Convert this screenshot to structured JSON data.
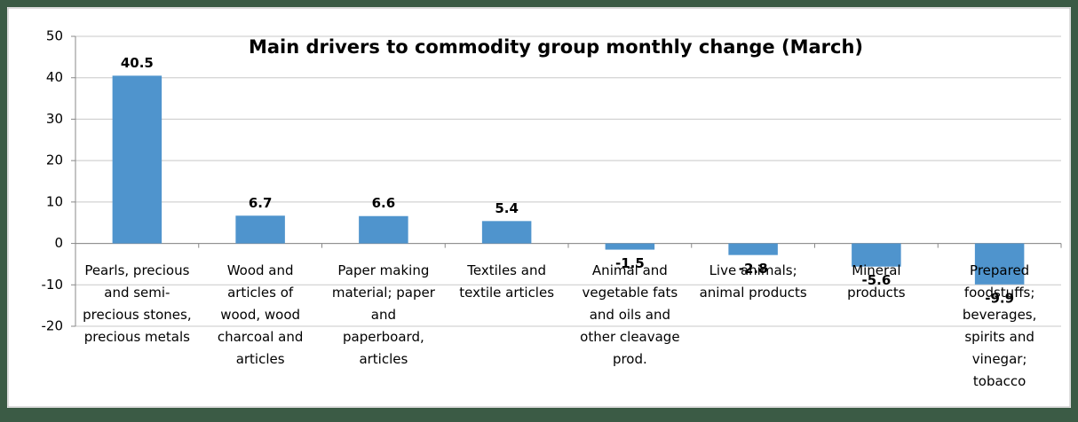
{
  "chart_data": {
    "type": "bar",
    "title": "Main drivers to commodity group monthly change (March)",
    "categories": [
      "Pearls, precious and semi-precious stones, precious metals",
      "Wood and articles of wood, wood charcoal and articles",
      "Paper making material; paper and paperboard, articles",
      "Textiles and textile articles",
      "Animal and vegetable fats and oils and other cleavage prod.",
      "Live animals; animal products",
      "Mineral products",
      "Prepared foodstuffs; beverages, spirits and vinegar; tobacco"
    ],
    "values": [
      40.5,
      6.7,
      6.6,
      5.4,
      -1.5,
      -2.8,
      -5.6,
      -9.9
    ],
    "color": "#4f94cd",
    "ylim": [
      -20,
      50
    ],
    "yticks": [
      -20,
      -10,
      0,
      10,
      20,
      30,
      40,
      50
    ],
    "grid": true
  }
}
